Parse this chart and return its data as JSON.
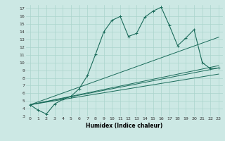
{
  "xlabel": "Humidex (Indice chaleur)",
  "background_color": "#cce8e4",
  "line_color": "#1a6b5a",
  "grid_color": "#aad4cc",
  "xlim": [
    -0.5,
    23.5
  ],
  "ylim": [
    3,
    17.5
  ],
  "xticks": [
    0,
    1,
    2,
    3,
    4,
    5,
    6,
    7,
    8,
    9,
    10,
    11,
    12,
    13,
    14,
    15,
    16,
    17,
    18,
    19,
    20,
    21,
    22,
    23
  ],
  "yticks": [
    3,
    4,
    5,
    6,
    7,
    8,
    9,
    10,
    11,
    12,
    13,
    14,
    15,
    16,
    17
  ],
  "main_line_x": [
    0,
    1,
    2,
    3,
    4,
    5,
    6,
    7,
    8,
    9,
    10,
    11,
    12,
    13,
    14,
    15,
    16,
    17,
    18,
    19,
    20,
    21,
    22,
    23
  ],
  "main_line_y": [
    4.5,
    3.8,
    3.3,
    4.6,
    5.2,
    5.6,
    6.6,
    8.3,
    11.1,
    14.0,
    15.5,
    16.0,
    13.4,
    13.8,
    15.9,
    16.7,
    17.2,
    14.8,
    12.2,
    13.2,
    14.3,
    10.0,
    9.2,
    9.3
  ],
  "trend_lines": [
    {
      "x0": 0,
      "y0": 4.5,
      "x1": 23,
      "y1": 9.3
    },
    {
      "x0": 0,
      "y0": 4.5,
      "x1": 23,
      "y1": 9.6
    },
    {
      "x0": 0,
      "y0": 4.5,
      "x1": 23,
      "y1": 13.3
    },
    {
      "x0": 0,
      "y0": 4.5,
      "x1": 23,
      "y1": 8.5
    }
  ]
}
